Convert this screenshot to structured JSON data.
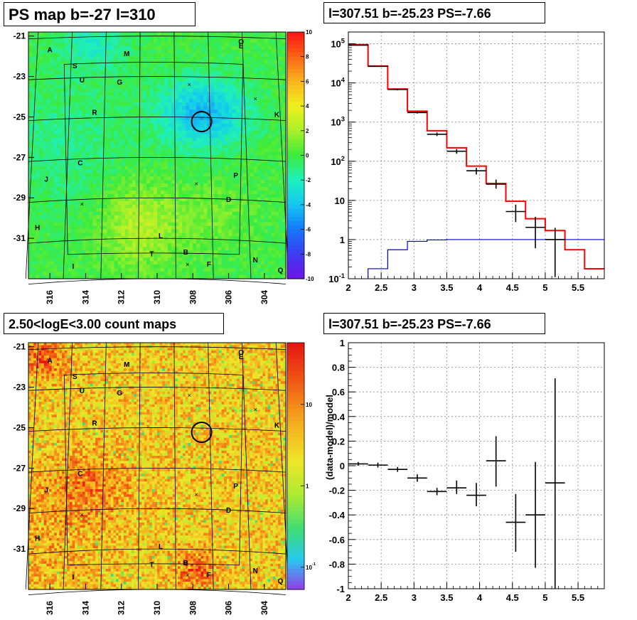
{
  "panels": {
    "map_title": "PS map b=-27 l=310",
    "spectrum_title": "l=307.51 b=-25.23 PS=-7.66",
    "count_title": "2.50<logE<3.00 count maps",
    "residual_title": "l=307.51 b=-25.23 PS=-7.66"
  },
  "chart_data": [
    {
      "id": "ps_map",
      "type": "heatmap",
      "title": "PS map b=-27 l=310",
      "x_ticks": [
        "316",
        "314",
        "312",
        "310",
        "308",
        "306",
        "304"
      ],
      "y_ticks": [
        "-21",
        "-23",
        "-25",
        "-27",
        "-29",
        "-31"
      ],
      "xlim": [
        317.2,
        302.8
      ],
      "ylim": [
        -33.0,
        -20.8
      ],
      "colorbar": {
        "ticks": [
          "10",
          "8",
          "6",
          "4",
          "2",
          "0",
          "-2",
          "-4",
          "-6",
          "-8",
          "-10"
        ],
        "range": [
          -10,
          10
        ]
      },
      "source_labels": [
        {
          "t": "A",
          "l": 316.0,
          "b": -21.8
        },
        {
          "t": "S",
          "l": 314.6,
          "b": -22.6
        },
        {
          "t": "M",
          "l": 311.7,
          "b": -22.0
        },
        {
          "t": "O",
          "l": 305.3,
          "b": -21.4
        },
        {
          "t": "E",
          "l": 305.3,
          "b": -21.6
        },
        {
          "t": "U",
          "l": 314.2,
          "b": -23.3
        },
        {
          "t": "G",
          "l": 312.1,
          "b": -23.4
        },
        {
          "t": "R",
          "l": 313.5,
          "b": -24.9
        },
        {
          "t": "K",
          "l": 303.3,
          "b": -25.0
        },
        {
          "t": "C",
          "l": 314.3,
          "b": -27.4
        },
        {
          "t": "J",
          "l": 316.2,
          "b": -28.2
        },
        {
          "t": "P",
          "l": 305.6,
          "b": -28.0
        },
        {
          "t": "D",
          "l": 306.0,
          "b": -29.2
        },
        {
          "t": "H",
          "l": 316.7,
          "b": -30.6
        },
        {
          "t": "L",
          "l": 309.8,
          "b": -31.0
        },
        {
          "t": "T",
          "l": 310.3,
          "b": -31.9
        },
        {
          "t": "B",
          "l": 308.4,
          "b": -31.8
        },
        {
          "t": "N",
          "l": 304.5,
          "b": -32.2
        },
        {
          "t": "F",
          "l": 307.1,
          "b": -32.4
        },
        {
          "t": "I",
          "l": 314.7,
          "b": -32.5
        },
        {
          "t": "Q",
          "l": 303.1,
          "b": -32.7
        }
      ],
      "crosses": [
        {
          "l": 308.2,
          "b": -23.4
        },
        {
          "l": 304.5,
          "b": -24.1
        },
        {
          "l": 307.8,
          "b": -28.3
        },
        {
          "l": 314.2,
          "b": -29.3
        },
        {
          "l": 308.3,
          "b": -32.3
        }
      ],
      "circle": {
        "l": 307.51,
        "b": -25.23
      }
    },
    {
      "id": "spectrum",
      "type": "line",
      "title": "l=307.51 b=-25.23 PS=-7.66",
      "x_ticks": [
        "2",
        "2.5",
        "3",
        "3.5",
        "4",
        "4.5",
        "5",
        "5.5"
      ],
      "y_ticks": [
        "10^-1",
        "1",
        "10",
        "10^2",
        "10^3",
        "10^4",
        "10^5"
      ],
      "xlim": [
        2.0,
        5.9
      ],
      "ylim": [
        0.1,
        200000
      ],
      "yscale": "log",
      "grid": true,
      "bin_edges": [
        2.0,
        2.3,
        2.6,
        2.9,
        3.2,
        3.5,
        3.8,
        4.1,
        4.4,
        4.7,
        5.0,
        5.3,
        5.6,
        5.9
      ],
      "series": [
        {
          "color": "#ff0000",
          "values": [
            95000,
            27000,
            7000,
            1900,
            600,
            220,
            75,
            27,
            9.5,
            3.4,
            1.7,
            0.55,
            0.18
          ]
        },
        {
          "color": "#0000cc",
          "values": [
            0.06,
            0.18,
            0.55,
            0.9,
            0.98,
            1.0,
            1.0,
            1.0,
            1.0,
            1.0,
            1.0,
            1.0,
            1.0
          ]
        }
      ],
      "data_points": [
        {
          "x": 2.15,
          "y": 92000,
          "ylo": 89000,
          "yhi": 95000
        },
        {
          "x": 2.45,
          "y": 26500,
          "ylo": 25800,
          "yhi": 27200
        },
        {
          "x": 2.75,
          "y": 6800,
          "ylo": 6500,
          "yhi": 7100
        },
        {
          "x": 3.05,
          "y": 1750,
          "ylo": 1650,
          "yhi": 1850
        },
        {
          "x": 3.35,
          "y": 490,
          "ylo": 440,
          "yhi": 540
        },
        {
          "x": 3.65,
          "y": 180,
          "ylo": 155,
          "yhi": 205
        },
        {
          "x": 3.95,
          "y": 57,
          "ylo": 46,
          "yhi": 68
        },
        {
          "x": 4.25,
          "y": 26,
          "ylo": 20,
          "yhi": 34
        },
        {
          "x": 4.55,
          "y": 5.2,
          "ylo": 2.8,
          "yhi": 7.8
        },
        {
          "x": 4.85,
          "y": 2.05,
          "ylo": 0.6,
          "yhi": 3.8
        },
        {
          "x": 5.15,
          "y": 1.0,
          "ylo": 0.11,
          "yhi": 2.0
        }
      ]
    },
    {
      "id": "count_map",
      "type": "heatmap",
      "title": "2.50<logE<3.00 count maps",
      "x_ticks": [
        "316",
        "314",
        "312",
        "310",
        "308",
        "306",
        "304"
      ],
      "y_ticks": [
        "-21",
        "-23",
        "-25",
        "-27",
        "-29",
        "-31"
      ],
      "xlim": [
        317.2,
        302.8
      ],
      "ylim": [
        -33.0,
        -20.8
      ],
      "colorbar": {
        "ticks": [
          "10",
          "1",
          "10^-1"
        ],
        "scale": "log"
      },
      "circle": {
        "l": 307.51,
        "b": -25.23
      }
    },
    {
      "id": "residual",
      "type": "scatter",
      "title": "l=307.51 b=-25.23 PS=-7.66",
      "ylabel": "(data-model)/model",
      "x_ticks": [
        "2",
        "2.5",
        "3",
        "3.5",
        "4",
        "4.5",
        "5",
        "5.5"
      ],
      "y_ticks": [
        "-1",
        "-0.8",
        "-0.6",
        "-0.4",
        "-0.2",
        "0",
        "0.2",
        "0.4",
        "0.6",
        "0.8",
        "1"
      ],
      "xlim": [
        2.0,
        5.9
      ],
      "ylim": [
        -1.0,
        1.0
      ],
      "grid": true,
      "points": [
        {
          "x": 2.15,
          "y": 0.015,
          "ylo": 0.0,
          "yhi": 0.03
        },
        {
          "x": 2.45,
          "y": 0.005,
          "ylo": -0.015,
          "yhi": 0.025
        },
        {
          "x": 2.75,
          "y": -0.03,
          "ylo": -0.05,
          "yhi": -0.01
        },
        {
          "x": 3.05,
          "y": -0.1,
          "ylo": -0.13,
          "yhi": -0.07
        },
        {
          "x": 3.35,
          "y": -0.21,
          "ylo": -0.24,
          "yhi": -0.18
        },
        {
          "x": 3.65,
          "y": -0.18,
          "ylo": -0.23,
          "yhi": -0.12
        },
        {
          "x": 3.95,
          "y": -0.24,
          "ylo": -0.33,
          "yhi": -0.14
        },
        {
          "x": 4.25,
          "y": 0.04,
          "ylo": -0.17,
          "yhi": 0.24
        },
        {
          "x": 4.55,
          "y": -0.46,
          "ylo": -0.7,
          "yhi": -0.23
        },
        {
          "x": 4.85,
          "y": -0.4,
          "ylo": -0.83,
          "yhi": 0.03
        },
        {
          "x": 5.15,
          "y": -0.14,
          "ylo": -1.0,
          "yhi": 0.71
        }
      ]
    }
  ]
}
